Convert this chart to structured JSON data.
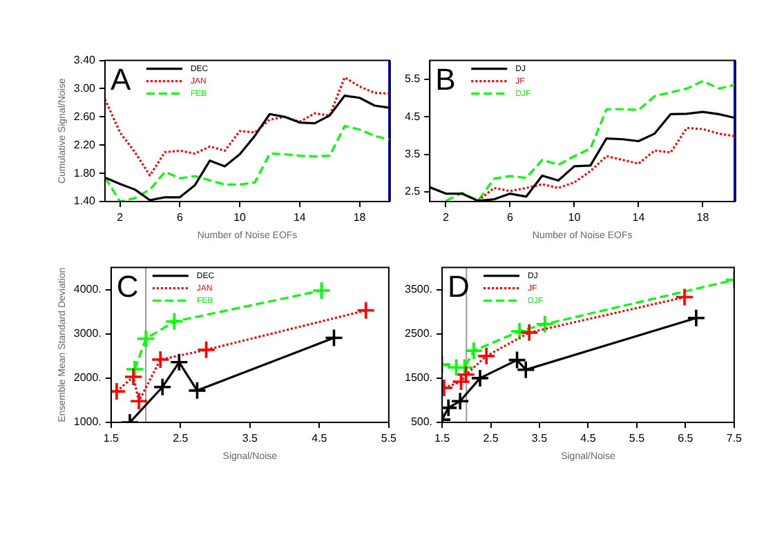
{
  "chart_data": [
    {
      "type": "line",
      "annotations": [
        "A"
      ],
      "xlabel": "Number of Noise EOFs",
      "ylabel": "Cumulative Signal/Noise",
      "x": [
        1,
        2,
        3,
        4,
        5,
        6,
        7,
        8,
        9,
        10,
        11,
        12,
        13,
        14,
        15,
        16,
        17,
        18,
        19,
        20
      ],
      "xlim": [
        1,
        20
      ],
      "xticks": [
        2,
        6,
        10,
        14,
        18
      ],
      "ylim": [
        1.4,
        3.4
      ],
      "yticks": [
        {
          "value": 1.4,
          "label": "1.40"
        },
        {
          "value": 1.8,
          "label": "1.80"
        },
        {
          "value": 2.2,
          "label": "2.20"
        },
        {
          "value": 2.6,
          "label": "2.60"
        },
        {
          "value": 3.0,
          "label": "3.00"
        },
        {
          "value": 3.4,
          "label": "3.40"
        }
      ],
      "grid": false,
      "legend": "top left",
      "marker": "none",
      "ref_lines": [
        {
          "axis": "x",
          "value": 20,
          "color": "#0000ff"
        }
      ],
      "series": [
        {
          "name": "DEC",
          "color": "#000000",
          "line_style": "solid",
          "values": [
            1.74,
            1.65,
            1.57,
            1.42,
            1.46,
            1.46,
            1.63,
            1.98,
            1.9,
            2.07,
            2.33,
            2.64,
            2.6,
            2.52,
            2.51,
            2.62,
            2.9,
            2.87,
            2.76,
            2.73
          ]
        },
        {
          "name": "JAN",
          "color": "#ff0000",
          "line_style": "dotted",
          "values": [
            2.85,
            2.38,
            2.1,
            1.77,
            2.1,
            2.12,
            2.08,
            2.18,
            2.12,
            2.4,
            2.38,
            2.56,
            2.6,
            2.53,
            2.65,
            2.62,
            3.16,
            3.03,
            2.94,
            2.93
          ]
        },
        {
          "name": "FEB",
          "color": "#00ff00",
          "line_style": "dashed",
          "values": [
            1.74,
            1.4,
            1.45,
            1.57,
            1.82,
            1.73,
            1.76,
            1.7,
            1.64,
            1.64,
            1.67,
            2.08,
            2.07,
            2.05,
            2.04,
            2.05,
            2.47,
            2.42,
            2.33,
            2.28
          ]
        }
      ]
    },
    {
      "type": "line",
      "annotations": [
        "B"
      ],
      "xlabel": "Number of Noise EOFs",
      "x": [
        1,
        2,
        3,
        4,
        5,
        6,
        7,
        8,
        9,
        10,
        11,
        12,
        13,
        14,
        15,
        16,
        17,
        18,
        19,
        20
      ],
      "xlim": [
        1,
        20
      ],
      "xticks": [
        2,
        6,
        10,
        14,
        18
      ],
      "ylim": [
        2.24,
        6.0
      ],
      "yticks": [
        2.5,
        3.5,
        4.5,
        5.5
      ],
      "grid": false,
      "legend": "top left",
      "marker": "none",
      "ref_lines": [
        {
          "axis": "x",
          "value": 20,
          "color": "#0000ff"
        }
      ],
      "series": [
        {
          "name": "DJ",
          "color": "#000000",
          "line_style": "solid",
          "values": [
            2.62,
            2.45,
            2.45,
            2.26,
            2.3,
            2.45,
            2.37,
            2.93,
            2.8,
            3.18,
            3.2,
            3.92,
            3.9,
            3.85,
            4.05,
            4.57,
            4.58,
            4.63,
            4.57,
            4.47
          ]
        },
        {
          "name": "JF",
          "color": "#ff0000",
          "line_style": "dotted",
          "values": [
            null,
            null,
            null,
            2.26,
            2.6,
            2.52,
            2.6,
            2.7,
            2.6,
            2.75,
            3.05,
            3.45,
            3.35,
            3.25,
            3.6,
            3.55,
            4.2,
            4.17,
            4.05,
            3.98
          ]
        },
        {
          "name": "DJF",
          "color": "#00ff00",
          "line_style": "dashed",
          "values": [
            null,
            2.26,
            2.47,
            2.26,
            2.85,
            2.92,
            2.87,
            3.35,
            3.22,
            3.45,
            3.65,
            4.7,
            4.7,
            4.68,
            5.05,
            5.15,
            5.25,
            5.45,
            5.25,
            5.35
          ]
        }
      ]
    },
    {
      "type": "line",
      "annotations": [
        "C"
      ],
      "xlabel": "Signal/Noise",
      "ylabel": "Ensemble Mean Standard Deviation",
      "xlim": [
        1.5,
        5.5
      ],
      "xticks": [
        1.5,
        2.5,
        3.5,
        4.5,
        5.5
      ],
      "ylim": [
        1000,
        4500
      ],
      "yticks": [
        {
          "value": 1000,
          "label": "1000."
        },
        {
          "value": 2000,
          "label": "2000."
        },
        {
          "value": 3000,
          "label": "3000."
        },
        {
          "value": 4000,
          "label": "4000."
        }
      ],
      "grid": false,
      "legend": "top left",
      "marker": "cross",
      "ref_lines": [
        {
          "axis": "x",
          "value": 2,
          "color": "#999999"
        }
      ],
      "series": [
        {
          "name": "DEC",
          "color": "#000000",
          "line_style": "solid",
          "x": [
            1.77,
            2.24,
            2.48,
            2.74,
            4.71
          ],
          "values": [
            1000,
            1800,
            2360,
            1720,
            2910
          ]
        },
        {
          "name": "JAN",
          "color": "#ff0000",
          "line_style": "dotted",
          "x": [
            1.58,
            1.82,
            1.9,
            2.21,
            2.87,
            5.17
          ],
          "values": [
            1700,
            2030,
            1480,
            2420,
            2640,
            3530
          ]
        },
        {
          "name": "FEB",
          "color": "#00ff00",
          "line_style": "dashed",
          "x": [
            1.84,
            2.0,
            2.41,
            4.53
          ],
          "values": [
            2200,
            2890,
            3280,
            3980
          ]
        }
      ]
    },
    {
      "type": "line",
      "annotations": [
        "D"
      ],
      "xlabel": "Signal/Noise",
      "xlim": [
        1.5,
        7.5
      ],
      "xticks": [
        1.5,
        2.5,
        3.5,
        4.5,
        5.5,
        6.5,
        7.5
      ],
      "ylim": [
        500,
        4000
      ],
      "yticks": [
        {
          "value": 500,
          "label": "500."
        },
        {
          "value": 1500,
          "label": "1500."
        },
        {
          "value": 2500,
          "label": "2500."
        },
        {
          "value": 3500,
          "label": "3500."
        }
      ],
      "grid": false,
      "legend": "top left",
      "marker": "cross",
      "ref_lines": [
        {
          "axis": "x",
          "value": 2,
          "color": "#999999"
        }
      ],
      "series": [
        {
          "name": "DJ",
          "color": "#000000",
          "line_style": "solid",
          "x": [
            1.5,
            1.63,
            1.87,
            2.28,
            3.04,
            3.22,
            6.72
          ],
          "values": [
            560,
            830,
            980,
            1500,
            1910,
            1690,
            2860
          ]
        },
        {
          "name": "JF",
          "color": "#ff0000",
          "line_style": "dotted",
          "x": [
            1.54,
            1.89,
            1.99,
            2.41,
            3.29,
            6.48
          ],
          "values": [
            1280,
            1420,
            1580,
            2000,
            2530,
            3330
          ]
        },
        {
          "name": "DJF",
          "color": "#00ff00",
          "line_style": "dashed",
          "x": [
            1.5,
            1.79,
            1.96,
            2.15,
            3.09,
            3.61,
            7.5
          ],
          "values": [
            1810,
            1740,
            1740,
            2120,
            2560,
            2720,
            3720
          ]
        }
      ]
    }
  ]
}
